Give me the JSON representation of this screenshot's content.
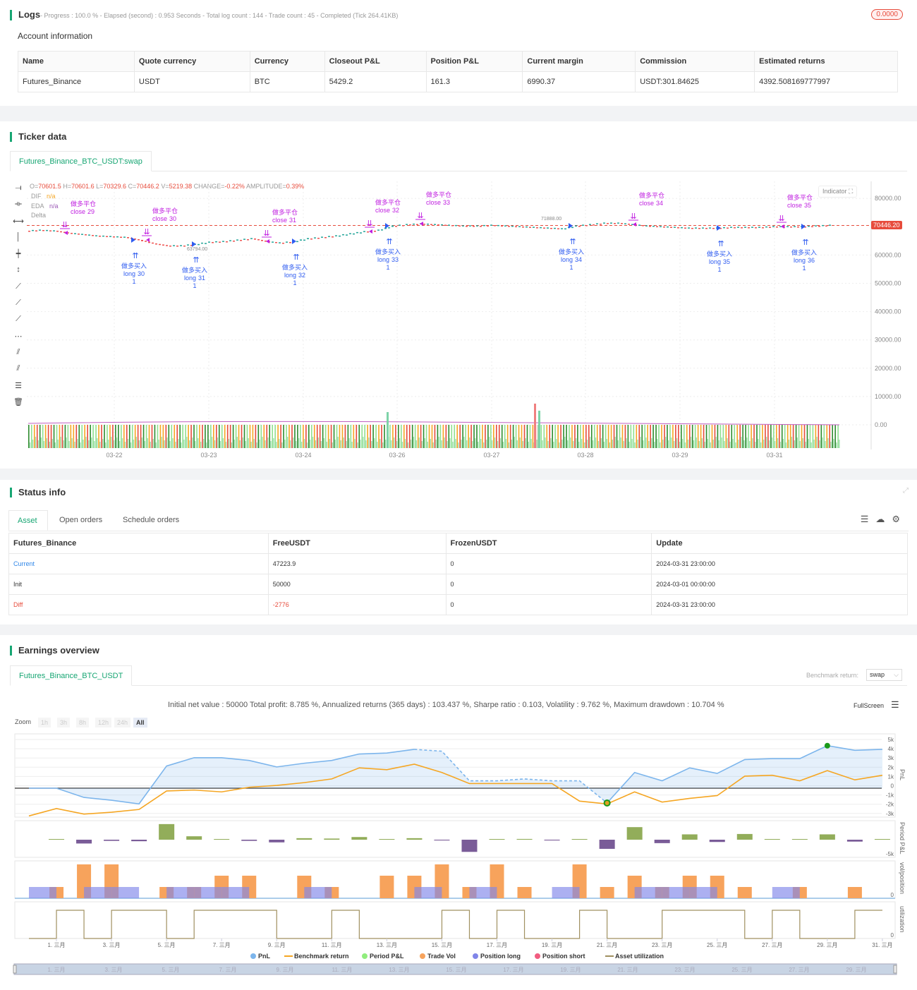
{
  "logs": {
    "title": "Logs",
    "status": "- Progress : 100.0 % - Elapsed (second) : 0.953  Seconds - Total log count : 144 - Trade count : 45 - Completed (Tick 264.41KB)",
    "badge": "0.0000"
  },
  "account": {
    "title": "Account information",
    "headers": [
      "Name",
      "Quote currency",
      "Currency",
      "Closeout P&L",
      "Position P&L",
      "Current margin",
      "Commission",
      "Estimated returns"
    ],
    "row": [
      "Futures_Binance",
      "USDT",
      "BTC",
      "5429.2",
      "161.3",
      "6990.37",
      "USDT:301.84625",
      "4392.508169777997"
    ]
  },
  "ticker": {
    "title": "Ticker data",
    "tab": "Futures_Binance_BTC_USDT:swap",
    "ohlc": {
      "o_label": "O=",
      "o": "70601.5",
      "h_label": "H=",
      "h": "70601.6",
      "l_label": "L=",
      "l": "70329.6",
      "c_label": "C=",
      "c": "70446.2",
      "v_label": "V=",
      "v": "5219.38",
      "change_label": "CHANGE=",
      "change": "-0.22%",
      "amp_label": "AMPLITUDE=",
      "amp": "0.39%"
    },
    "indicators": [
      {
        "name": "DIF",
        "value": "n/a",
        "color": "#f5a623"
      },
      {
        "name": "EDA",
        "value": "n/a",
        "color": "#9b59b6"
      },
      {
        "name": "Delta",
        "value": ""
      }
    ],
    "indicator_button": "Indicator",
    "last_price": "70446.20",
    "high_mark": "71888.00",
    "low_mark": "63794.00",
    "yticks": [
      "80000.00",
      "60000.00",
      "50000.00",
      "40000.00",
      "30000.00",
      "20000.00",
      "10000.00",
      "0.00"
    ],
    "xticks": [
      "03-22",
      "03-23",
      "03-24",
      "03-26",
      "03-27",
      "03-28",
      "03-29",
      "03-31"
    ],
    "prices": [
      68580,
      68830,
      68580,
      67830,
      67330,
      66830,
      66580,
      66330,
      65340,
      64090,
      63340,
      63340,
      63840,
      64590,
      64840,
      65340,
      65840,
      64840,
      64340,
      64840,
      65840,
      66330,
      66830,
      67580,
      68330,
      68830,
      70320,
      70820,
      71070,
      70820,
      70570,
      70320,
      70320,
      70570,
      70320,
      70070,
      69820,
      69580,
      69330,
      70320,
      70820,
      71320,
      71320,
      70820,
      70320,
      70070,
      69820,
      69580,
      69580,
      69580,
      69820,
      69820,
      69820,
      70070,
      70070,
      70070,
      70320,
      70570
    ],
    "signals_close": [
      {
        "a": "做多平仓",
        "b": "close",
        "n": "29",
        "i": 2.6
      },
      {
        "a": "做多平仓",
        "b": "close",
        "n": "30",
        "i": 8.4
      },
      {
        "a": "做多平仓",
        "b": "close",
        "n": "31",
        "i": 16.9
      },
      {
        "a": "做多平仓",
        "b": "close",
        "n": "32",
        "i": 24.2
      },
      {
        "a": "做多平仓",
        "b": "close",
        "n": "33",
        "i": 27.8
      },
      {
        "a": "做多平仓",
        "b": "close",
        "n": "34",
        "i": 42.9
      },
      {
        "a": "做多平仓",
        "b": "close",
        "n": "35",
        "i": 53.4
      }
    ],
    "signals_long": [
      {
        "a": "做多买入",
        "b": "long",
        "n": "30",
        "i": 7.5,
        "q": "1"
      },
      {
        "a": "做多买入",
        "b": "long",
        "n": "31",
        "i": 11.8,
        "q": "1"
      },
      {
        "a": "做多买入",
        "b": "long",
        "n": "32",
        "i": 18.9,
        "q": "1"
      },
      {
        "a": "做多买入",
        "b": "long",
        "n": "33",
        "i": 25.5,
        "q": "1"
      },
      {
        "a": "做多买入",
        "b": "long",
        "n": "34",
        "i": 38.5,
        "q": "1"
      },
      {
        "a": "做多买入",
        "b": "long",
        "n": "35",
        "i": 49,
        "q": "1"
      },
      {
        "a": "做多买入",
        "b": "long",
        "n": "36",
        "i": 55,
        "q": "1"
      }
    ]
  },
  "status": {
    "title": "Status info",
    "tabs": [
      "Asset",
      "Open orders",
      "Schedule orders"
    ],
    "headers": [
      "Futures_Binance",
      "FreeUSDT",
      "FrozenUSDT",
      "Update"
    ],
    "rows": [
      [
        "Current",
        "47223.9",
        "0",
        "2024-03-31 23:00:00"
      ],
      [
        "Init",
        "50000",
        "0",
        "2024-03-01 00:00:00"
      ],
      [
        "Diff",
        "-2776",
        "0",
        "2024-03-31 23:00:00"
      ]
    ]
  },
  "earnings": {
    "title": "Earnings overview",
    "tab": "Futures_Binance_BTC_USDT",
    "benchmark_label": "Benchmark return:",
    "benchmark_value": "swap",
    "summary": "Initial net value : 50000 Total profit: 8.785 %, Annualized returns (365 days) : 103.437 %, Sharpe ratio : 0.103, Volatility : 9.762 %, Maximum drawdown : 10.704 %",
    "fullscreen": "FullScreen",
    "zoom_label": "Zoom",
    "zoom_options": [
      "1h",
      "3h",
      "8h",
      "12h",
      "24h",
      "All"
    ],
    "pnl_ticks": [
      "5k",
      "4k",
      "3k",
      "2k",
      "1k",
      "0",
      "-1k",
      "-2k",
      "-3k"
    ],
    "period_tick": "-5k",
    "vol_tick": "0",
    "util_tick": "0",
    "panel_titles": [
      "PnL",
      "Period P&L",
      "vol/position",
      "utilization"
    ],
    "xticks": [
      "1. 三月",
      "3. 三月",
      "5. 三月",
      "7. 三月",
      "9. 三月",
      "11. 三月",
      "13. 三月",
      "15. 三月",
      "17. 三月",
      "19. 三月",
      "21. 三月",
      "23. 三月",
      "25. 三月",
      "27. 三月",
      "29. 三月",
      "31. 三月"
    ],
    "nav_ticks": [
      "1. 三月",
      "3. 三月",
      "5. 三月",
      "7. 三月",
      "9. 三月",
      "11. 三月",
      "13. 三月",
      "15. 三月",
      "17. 三月",
      "19. 三月",
      "21. 三月",
      "23. 三月",
      "25. 三月",
      "27. 三月",
      "29. 三月"
    ],
    "legend": [
      {
        "label": "PnL",
        "color": "#7cb5ec"
      },
      {
        "label": "Benchmark return",
        "color": "#f5a623"
      },
      {
        "label": "Period P&L",
        "color": "#90ed7d"
      },
      {
        "label": "Trade Vol",
        "color": "#f7a35c"
      },
      {
        "label": "Position long",
        "color": "#8085e9"
      },
      {
        "label": "Position short",
        "color": "#f15c80"
      },
      {
        "label": "Asset utilization",
        "color": "#a09060"
      }
    ]
  },
  "chart_data": {
    "type": "line",
    "x_days": [
      0,
      1,
      2,
      3,
      4,
      5,
      6,
      7,
      8,
      9,
      10,
      11,
      12,
      13,
      14,
      15,
      16,
      17,
      18,
      19,
      20,
      21,
      22,
      23,
      24,
      25,
      26,
      27,
      28,
      29,
      30,
      31
    ],
    "pnl_k": [
      0,
      0,
      -1.0,
      -1.3,
      -1.7,
      2.4,
      3.3,
      3.3,
      3.0,
      2.3,
      2.7,
      3.0,
      3.7,
      3.8,
      4.2,
      4.0,
      0.8,
      0.8,
      1.0,
      0.8,
      0.8,
      -1.6,
      1.7,
      0.8,
      2.2,
      1.6,
      3.1,
      3.2,
      3.2,
      4.6,
      4.1,
      4.2
    ],
    "benchmark_k": [
      -3.0,
      -2.2,
      -2.8,
      -2.6,
      -2.3,
      -0.3,
      -0.2,
      -0.4,
      0.1,
      0.3,
      0.6,
      1.0,
      2.2,
      2.0,
      2.6,
      1.7,
      0.5,
      0.5,
      0.5,
      0.5,
      -1.4,
      -1.7,
      -0.4,
      -1.5,
      -1.1,
      -0.8,
      1.3,
      1.4,
      0.8,
      1.9,
      0.9,
      1.4
    ],
    "period_pnl_k": [
      0,
      -1.0,
      -0.3,
      -0.4,
      4.1,
      0.9,
      0,
      -0.3,
      -0.7,
      0.4,
      0.3,
      0.7,
      0.1,
      0.4,
      -0.2,
      -3.2,
      0,
      0.2,
      -0.2,
      0,
      -2.4,
      3.3,
      -0.9,
      1.4,
      -0.6,
      1.5,
      0.1,
      0,
      1.4,
      -0.5,
      0.1
    ],
    "trade_vol": [
      1,
      3,
      3,
      0,
      1,
      1,
      2,
      2,
      0,
      2,
      1,
      0,
      2,
      2,
      3,
      1,
      3,
      1,
      0,
      3,
      1,
      2,
      1,
      2,
      2,
      1,
      0,
      1,
      0,
      1,
      0
    ],
    "position_long": [
      1,
      0,
      1,
      1,
      0,
      1,
      1,
      1,
      0,
      0,
      1,
      0,
      0,
      0,
      1,
      0,
      1,
      0,
      0,
      1,
      0,
      0,
      1,
      1,
      1,
      0,
      0,
      1,
      0,
      0,
      0
    ],
    "utilization": [
      0,
      1,
      0,
      1,
      1,
      0,
      1,
      1,
      1,
      0,
      0,
      1,
      0,
      0,
      0,
      1,
      0,
      1,
      0,
      0,
      1,
      0,
      0,
      1,
      1,
      1,
      0,
      1,
      0,
      0,
      1
    ]
  }
}
